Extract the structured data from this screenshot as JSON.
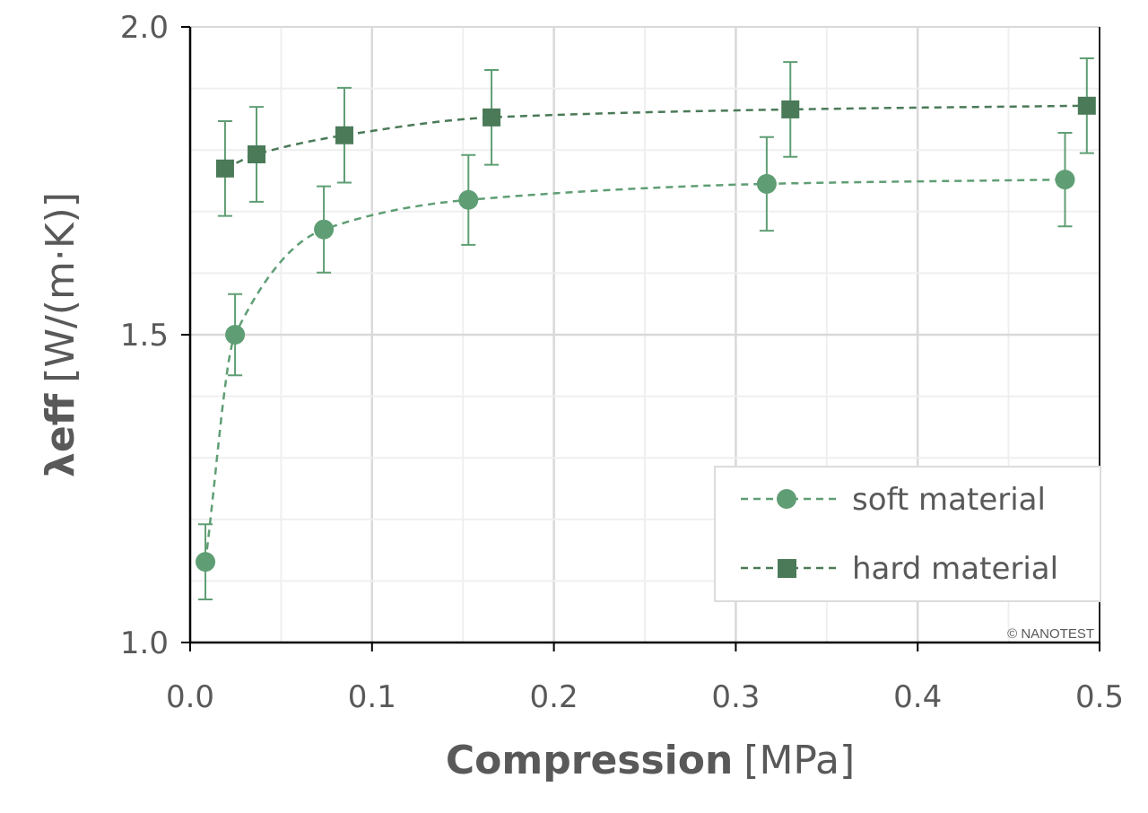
{
  "chart_data": {
    "type": "scatter",
    "title": "",
    "xlabel_bold": "Compression",
    "xlabel_unit": "[MPa]",
    "ylabel_bold": "λeff",
    "ylabel_unit": "[W/(m·K)]",
    "xlim": [
      0,
      0.5
    ],
    "ylim": [
      1.0,
      2.0
    ],
    "xticks": [
      "0.0",
      "0.1",
      "0.2",
      "0.3",
      "0.4",
      "0.5"
    ],
    "yticks": [
      "1.0",
      "1.5",
      "2.0"
    ],
    "grid": true,
    "legend_position": "bottom-right",
    "copyright": "© NANOTEST",
    "series": [
      {
        "name": "soft material",
        "marker": "circle",
        "color": "#5f9e74",
        "line": "dashed",
        "x": [
          0.0084,
          0.0247,
          0.0735,
          0.153,
          0.317,
          0.481
        ],
        "y": [
          1.131,
          1.5,
          1.671,
          1.719,
          1.745,
          1.752
        ],
        "error": [
          0.061,
          0.066,
          0.07,
          0.073,
          0.076,
          0.076
        ]
      },
      {
        "name": "hard material",
        "marker": "square",
        "color": "#4a7a58",
        "line": "dashed",
        "x": [
          0.0192,
          0.0365,
          0.0848,
          0.1657,
          0.33,
          0.493
        ],
        "y": [
          1.77,
          1.793,
          1.824,
          1.853,
          1.866,
          1.872
        ],
        "error": [
          0.077,
          0.077,
          0.077,
          0.077,
          0.077,
          0.077
        ]
      }
    ]
  }
}
